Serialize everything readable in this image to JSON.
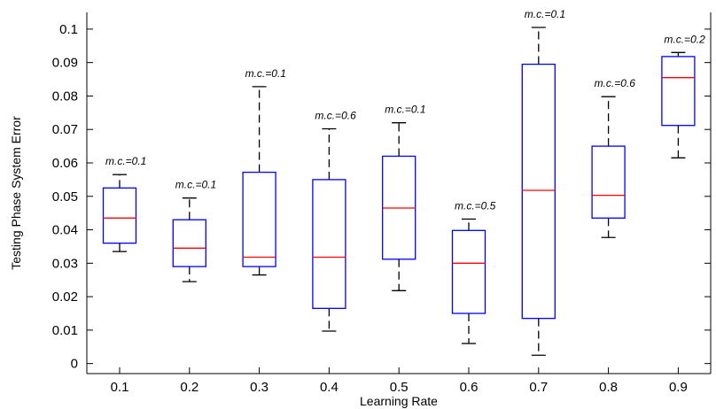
{
  "chart_data": {
    "type": "boxplot",
    "title": "",
    "xlabel": "Learning Rate",
    "ylabel": "Testing Phase System Error",
    "ylim": [
      -0.003,
      0.105
    ],
    "yticks": [
      0,
      0.01,
      0.02,
      0.03,
      0.04,
      0.05,
      0.06,
      0.07,
      0.08,
      0.09,
      0.1
    ],
    "ytick_labels": [
      "0",
      "0.01",
      "0.02",
      "0.03",
      "0.04",
      "0.05",
      "0.06",
      "0.07",
      "0.08",
      "0.09",
      "0.1"
    ],
    "grid": false,
    "colors": {
      "box": "#0000ff",
      "median": "#ff0000",
      "whisker": "#000000",
      "axis": "#000000"
    },
    "categories": [
      "0.1",
      "0.2",
      "0.3",
      "0.4",
      "0.5",
      "0.6",
      "0.7",
      "0.8",
      "0.9"
    ],
    "boxes": [
      {
        "category": "0.1",
        "min": 0.0335,
        "q1": 0.036,
        "median": 0.0435,
        "q3": 0.0525,
        "max": 0.0565,
        "annotation": "m.c.=0.1"
      },
      {
        "category": "0.2",
        "min": 0.0245,
        "q1": 0.029,
        "median": 0.0345,
        "q3": 0.043,
        "max": 0.0495,
        "annotation": "m.c.=0.1"
      },
      {
        "category": "0.3",
        "min": 0.0265,
        "q1": 0.029,
        "median": 0.0318,
        "q3": 0.0572,
        "max": 0.0828,
        "annotation": "m.c.=0.1"
      },
      {
        "category": "0.4",
        "min": 0.0097,
        "q1": 0.0165,
        "median": 0.0318,
        "q3": 0.055,
        "max": 0.0702,
        "annotation": "m.c.=0.6"
      },
      {
        "category": "0.5",
        "min": 0.0218,
        "q1": 0.0312,
        "median": 0.0465,
        "q3": 0.062,
        "max": 0.072,
        "annotation": "m.c.=0.1"
      },
      {
        "category": "0.6",
        "min": 0.006,
        "q1": 0.015,
        "median": 0.03,
        "q3": 0.0398,
        "max": 0.0432,
        "annotation": "m.c.=0.5"
      },
      {
        "category": "0.7",
        "min": 0.0025,
        "q1": 0.0135,
        "median": 0.0518,
        "q3": 0.0895,
        "max": 0.1005,
        "annotation": "m.c.=0.1"
      },
      {
        "category": "0.8",
        "min": 0.0377,
        "q1": 0.0435,
        "median": 0.0503,
        "q3": 0.065,
        "max": 0.0798,
        "annotation": "m.c.=0.6"
      },
      {
        "category": "0.9",
        "min": 0.0615,
        "q1": 0.0712,
        "median": 0.0855,
        "q3": 0.0918,
        "max": 0.093,
        "annotation": "m.c.=0.2"
      }
    ]
  }
}
